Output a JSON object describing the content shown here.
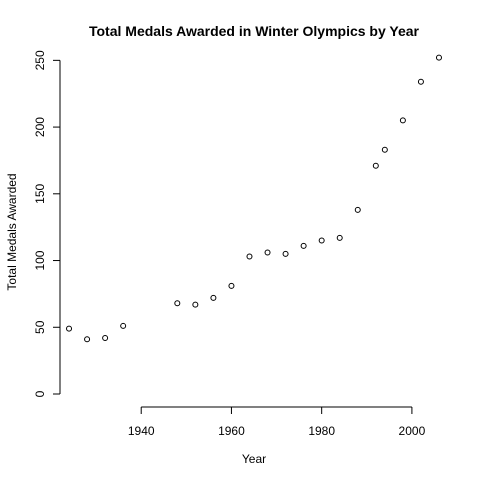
{
  "chart_data": {
    "type": "scatter",
    "title": "Total Medals Awarded in Winter Olympics by Year",
    "xlabel": "Year",
    "ylabel": "Total Medals Awarded",
    "xlim": [
      1922,
      2008
    ],
    "ylim": [
      0,
      260
    ],
    "x_ticks": [
      1940,
      1960,
      1980,
      2000
    ],
    "y_ticks": [
      0,
      50,
      100,
      150,
      200,
      250
    ],
    "grid": false,
    "marker": "open-circle",
    "x": [
      1924,
      1928,
      1932,
      1936,
      1948,
      1952,
      1956,
      1960,
      1964,
      1968,
      1972,
      1976,
      1980,
      1984,
      1988,
      1992,
      1994,
      1998,
      2002,
      2006
    ],
    "y": [
      49,
      41,
      42,
      51,
      68,
      67,
      72,
      81,
      103,
      106,
      105,
      111,
      115,
      117,
      138,
      171,
      183,
      205,
      234,
      252
    ]
  }
}
